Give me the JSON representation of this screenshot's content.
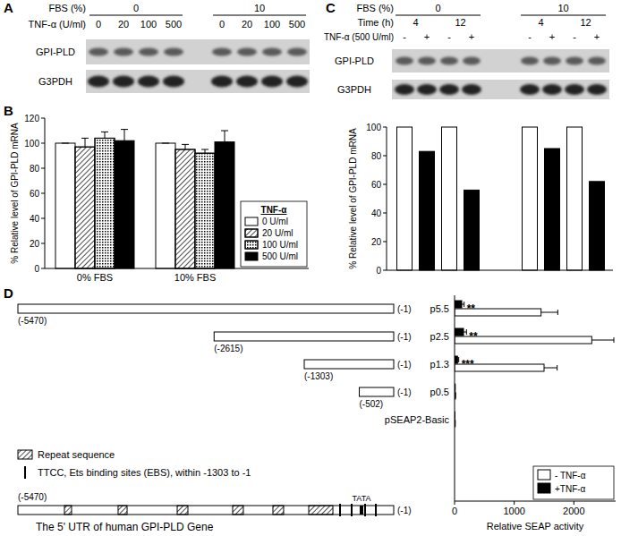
{
  "panel_labels": [
    "A",
    "B",
    "C",
    "D"
  ],
  "blot_a": {
    "group_label": "FBS (%)",
    "groups": [
      "0",
      "10"
    ],
    "lane_label": "TNF-α (U/ml)",
    "lanes": [
      "0",
      "20",
      "100",
      "500",
      "0",
      "20",
      "100",
      "500"
    ],
    "rows": [
      "GPI-PLD",
      "G3PDH"
    ]
  },
  "blot_c": {
    "group_label": "FBS (%)",
    "groups": [
      "0",
      "10"
    ],
    "time_label": "Time (h)",
    "times": [
      "4",
      "12",
      "4",
      "12"
    ],
    "lane_label": "TNF-α (500 U/ml)",
    "lanes": [
      "-",
      "+",
      "-",
      "+",
      "-",
      "+",
      "-",
      "+"
    ],
    "rows": [
      "GPI-PLD",
      "G3PDH"
    ]
  },
  "chart_data": [
    {
      "type": "bar",
      "y_label": "% Relative level of GPI-PLD mRNA",
      "categories": [
        "0% FBS",
        "10% FBS"
      ],
      "series": [
        {
          "name": "0 U/ml",
          "color": "#ffffff",
          "values": [
            100,
            100
          ],
          "errors": [
            0,
            0
          ]
        },
        {
          "name": "20 U/ml",
          "color": "#ffffff",
          "values": [
            97,
            95
          ],
          "errors": [
            7,
            4
          ]
        },
        {
          "name": "100 U/ml",
          "color": "#ffffff",
          "values": [
            104,
            92
          ],
          "errors": [
            5,
            3
          ]
        },
        {
          "name": "500 U/ml",
          "color": "#000000",
          "values": [
            102,
            101
          ],
          "errors": [
            9,
            9
          ]
        }
      ],
      "legend_title": "TNF-α",
      "legend": "lower right",
      "ylim": [
        0,
        120
      ],
      "yticks": [
        0,
        20,
        40,
        60,
        80,
        100,
        120
      ]
    },
    {
      "type": "bar",
      "y_label": "% Relative level of GPI-PLD mRNA",
      "categories": [
        null,
        null,
        null,
        null
      ],
      "series": [
        {
          "color": "#ffffff",
          "values": [
            100,
            100,
            100,
            100
          ]
        },
        {
          "color": "#000000",
          "values": [
            83,
            56,
            85,
            62
          ]
        }
      ],
      "ylim": [
        0,
        100
      ],
      "yticks": [
        0,
        20,
        40,
        60,
        80,
        100
      ]
    },
    {
      "type": "bar",
      "orientation": "horizontal",
      "x_label": "Relative SEAP activity",
      "categories": [
        "p5.5",
        "p2.5",
        "p1.3",
        "p0.5",
        "pSEAP2-Basic"
      ],
      "series": [
        {
          "name": "- TNF-α",
          "color": "#ffffff",
          "values": [
            1450,
            2300,
            1500,
            15,
            10
          ],
          "errors": [
            280,
            370,
            220,
            0,
            0
          ]
        },
        {
          "name": "+TNF-α",
          "color": "#000000",
          "values": [
            120,
            150,
            50,
            10,
            5
          ],
          "errors": [
            40,
            50,
            20,
            0,
            0
          ]
        }
      ],
      "annotations": [
        {
          "category": "p5.5",
          "text": "**"
        },
        {
          "category": "p2.5",
          "text": "**"
        },
        {
          "category": "p1.3",
          "text": "***"
        }
      ],
      "xlim": [
        0,
        2700
      ],
      "xticks": [
        0,
        1000,
        2000
      ],
      "legend": "lower right"
    }
  ],
  "diagram_d": {
    "constructs": [
      {
        "start": -5470,
        "end": -1,
        "start_label": "(-5470)",
        "end_label": "(-1)"
      },
      {
        "start": -2615,
        "end": -1,
        "start_label": "(-2615)",
        "end_label": "(-1)"
      },
      {
        "start": -1303,
        "end": -1,
        "start_label": "(-1303)",
        "end_label": "(-1)"
      },
      {
        "start": -502,
        "end": -1,
        "start_label": "(-502)",
        "end_label": "(-1)"
      }
    ],
    "gene": {
      "title": "The 5' UTR of human GPI-PLD Gene",
      "start": -5470,
      "end": -1,
      "start_label": "(-5470)",
      "end_label": "(-1)",
      "repeats": [
        [
          -4793,
          -4689
        ],
        [
          -4012,
          -3881
        ],
        [
          -3152,
          -2996
        ],
        [
          -2345,
          -2189
        ],
        [
          -1759,
          -1603
        ],
        [
          -1238,
          -886
        ]
      ],
      "ebs": [
        -782,
        -613,
        -418,
        -261
      ],
      "tata": -470,
      "tata_label": "TATA"
    },
    "legend": {
      "repeat": "Repeat sequence",
      "ebs": "TTCC, Ets binding sites (EBS), within -1303 to -1"
    }
  }
}
